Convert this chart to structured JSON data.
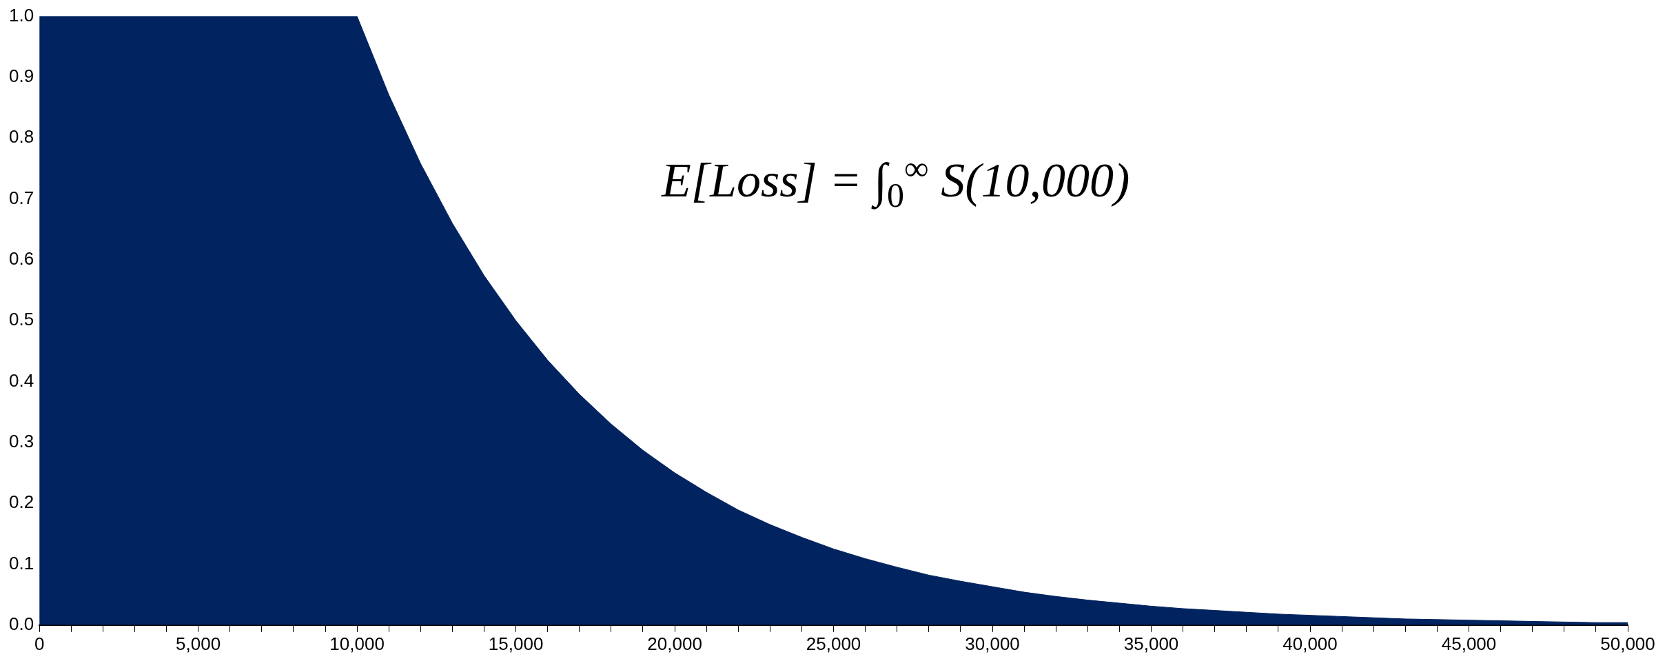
{
  "chart_data": {
    "type": "area",
    "x": [
      0,
      10000,
      11000,
      12000,
      13000,
      14000,
      15000,
      16000,
      17000,
      18000,
      19000,
      20000,
      21000,
      22000,
      23000,
      24000,
      25000,
      26000,
      27000,
      28000,
      29000,
      30000,
      31000,
      32000,
      33000,
      34000,
      35000,
      36000,
      37000,
      38000,
      39000,
      40000,
      41000,
      42000,
      43000,
      44000,
      45000,
      46000,
      47000,
      48000,
      49000,
      50000
    ],
    "series": [
      {
        "color": "#01235f",
        "values": [
          1.0,
          1.0,
          0.871,
          0.758,
          0.66,
          0.574,
          0.5,
          0.435,
          0.379,
          0.33,
          0.287,
          0.25,
          0.218,
          0.189,
          0.165,
          0.144,
          0.125,
          0.109,
          0.095,
          0.082,
          0.072,
          0.063,
          0.054,
          0.047,
          0.041,
          0.036,
          0.031,
          0.027,
          0.024,
          0.021,
          0.018,
          0.016,
          0.014,
          0.012,
          0.01,
          0.009,
          0.008,
          0.007,
          0.006,
          0.005,
          0.004,
          0.004
        ]
      }
    ],
    "xlim": [
      0,
      50000
    ],
    "xticks": [
      0,
      {
        "value": 1000,
        "label": null
      },
      {
        "value": 2000,
        "label": null
      },
      {
        "value": 3000,
        "label": null
      },
      {
        "value": 4000,
        "label": null
      },
      {
        "value": 5000,
        "label": "5,000"
      },
      {
        "value": 6000,
        "label": null
      },
      {
        "value": 7000,
        "label": null
      },
      {
        "value": 8000,
        "label": null
      },
      {
        "value": 9000,
        "label": null
      },
      {
        "value": 10000,
        "label": "10,000"
      },
      {
        "value": 11000,
        "label": null
      },
      {
        "value": 12000,
        "label": null
      },
      {
        "value": 13000,
        "label": null
      },
      {
        "value": 14000,
        "label": null
      },
      {
        "value": 15000,
        "label": "15,000"
      },
      {
        "value": 16000,
        "label": null
      },
      {
        "value": 17000,
        "label": null
      },
      {
        "value": 18000,
        "label": null
      },
      {
        "value": 19000,
        "label": null
      },
      {
        "value": 20000,
        "label": "20,000"
      },
      {
        "value": 21000,
        "label": null
      },
      {
        "value": 22000,
        "label": null
      },
      {
        "value": 23000,
        "label": null
      },
      {
        "value": 24000,
        "label": null
      },
      {
        "value": 25000,
        "label": "25,000"
      },
      {
        "value": 26000,
        "label": null
      },
      {
        "value": 27000,
        "label": null
      },
      {
        "value": 28000,
        "label": null
      },
      {
        "value": 29000,
        "label": null
      },
      {
        "value": 30000,
        "label": "30,000"
      },
      {
        "value": 31000,
        "label": null
      },
      {
        "value": 32000,
        "label": null
      },
      {
        "value": 33000,
        "label": null
      },
      {
        "value": 34000,
        "label": null
      },
      {
        "value": 35000,
        "label": "35,000"
      },
      {
        "value": 36000,
        "label": null
      },
      {
        "value": 37000,
        "label": null
      },
      {
        "value": 38000,
        "label": null
      },
      {
        "value": 39000,
        "label": null
      },
      {
        "value": 40000,
        "label": "40,000"
      },
      {
        "value": 41000,
        "label": null
      },
      {
        "value": 42000,
        "label": null
      },
      {
        "value": 43000,
        "label": null
      },
      {
        "value": 44000,
        "label": null
      },
      {
        "value": 45000,
        "label": "45,000"
      },
      {
        "value": 46000,
        "label": null
      },
      {
        "value": 47000,
        "label": null
      },
      {
        "value": 48000,
        "label": null
      },
      {
        "value": 49000,
        "label": null
      },
      {
        "value": 50000,
        "label": "50,000"
      }
    ],
    "ylim": [
      0,
      1
    ],
    "yticks": [
      {
        "value": 0,
        "label": "0.0"
      },
      {
        "value": 0.1,
        "label": "0.1"
      },
      {
        "value": 0.2,
        "label": "0.2"
      },
      {
        "value": 0.3,
        "label": "0.3"
      },
      {
        "value": 0.4,
        "label": "0.4"
      },
      {
        "value": 0.5,
        "label": "0.5"
      },
      {
        "value": 0.6,
        "label": "0.6"
      },
      {
        "value": 0.7,
        "label": "0.7"
      },
      {
        "value": 0.8,
        "label": "0.8"
      },
      {
        "value": 0.9,
        "label": "0.9"
      },
      {
        "value": 1,
        "label": "1.0"
      }
    ],
    "annotations": [
      "E[Loss] = ∫$_{0}$$^{∞}$ S(10,000)"
    ],
    "grid": false,
    "legend": false,
    "marker": "none"
  }
}
